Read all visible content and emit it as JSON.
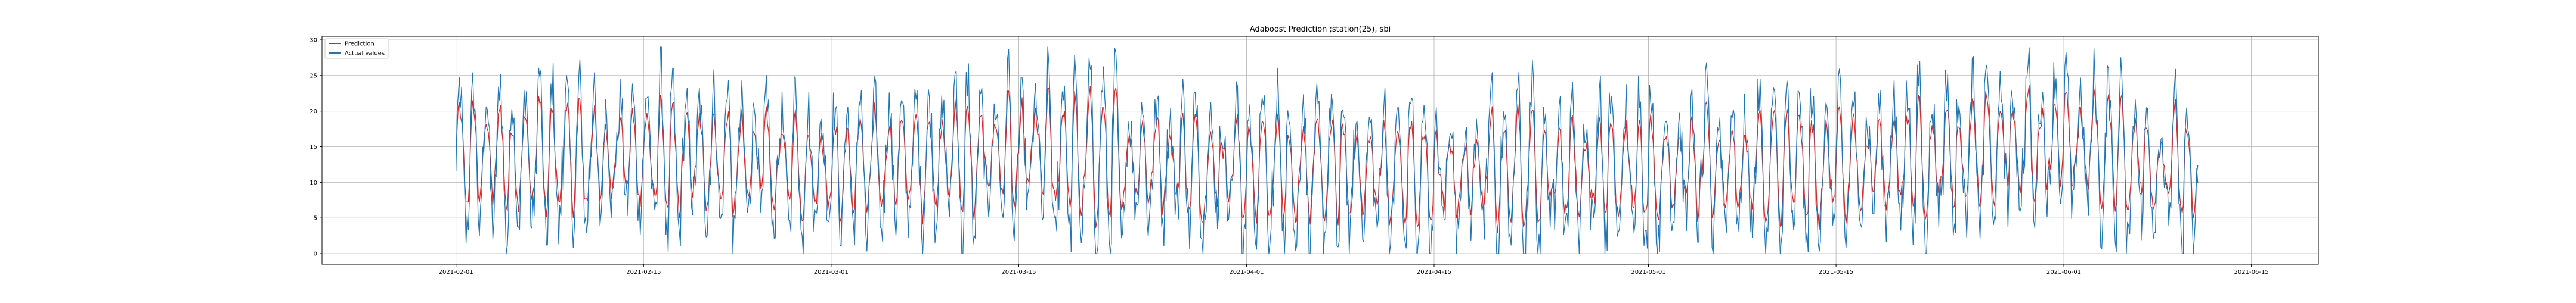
{
  "chart_data": {
    "type": "line",
    "title": "Adaboost Prediction ;station(25), sbi",
    "xlabel": "",
    "ylabel": "",
    "xlim": [
      "2021-01-22",
      "2021-06-20"
    ],
    "ylim": [
      -1.5,
      30.5
    ],
    "grid": true,
    "legend_position": "top-left",
    "x_ticks": [
      "2021-02-01",
      "2021-02-15",
      "2021-03-01",
      "2021-03-15",
      "2021-04-01",
      "2021-04-15",
      "2021-05-01",
      "2021-05-15",
      "2021-06-01",
      "2021-06-15"
    ],
    "y_ticks": [
      0,
      5,
      10,
      15,
      20,
      25,
      30
    ],
    "x_start": "2021-02-01",
    "x_end": "2021-06-11",
    "series": [
      {
        "name": "Prediction",
        "color": "#d62728",
        "x": [
          "2021-02-01",
          "2021-02-15",
          "2021-03-01",
          "2021-03-15",
          "2021-04-01",
          "2021-04-15",
          "2021-05-01",
          "2021-05-15",
          "2021-06-01",
          "2021-06-11"
        ],
        "values": [
          15,
          13,
          12,
          14,
          12,
          11,
          12,
          12,
          15,
          14
        ]
      },
      {
        "name": "Actual values",
        "color": "#1f77b4",
        "x": [
          "2021-02-01",
          "2021-02-15",
          "2021-03-01",
          "2021-03-15",
          "2021-04-01",
          "2021-04-15",
          "2021-05-01",
          "2021-05-15",
          "2021-06-01",
          "2021-06-11"
        ],
        "values": [
          13,
          14,
          12,
          14,
          12,
          11,
          12,
          12,
          16,
          10
        ]
      }
    ]
  }
}
